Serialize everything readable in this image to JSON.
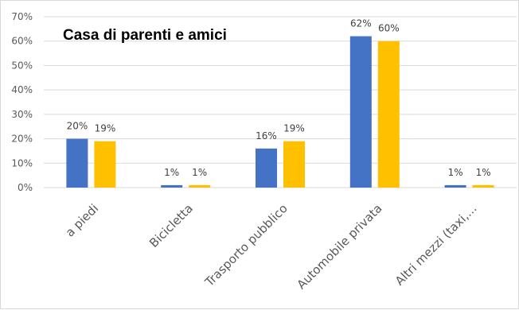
{
  "chart_data": {
    "type": "bar",
    "title": "Casa di parenti e amici",
    "categories": [
      "a piedi",
      "Bicicletta",
      "Trasporto pubblico",
      "Automobile privata",
      "Altri mezzi (taxi,..."
    ],
    "series": [
      {
        "color": "#4472C4",
        "values": [
          20,
          1,
          16,
          62,
          1
        ],
        "data_labels": [
          "20%",
          "1%",
          "16%",
          "62%",
          "1%"
        ]
      },
      {
        "color": "#FFC000",
        "values": [
          19,
          1,
          19,
          60,
          1
        ],
        "data_labels": [
          "19%",
          "1%",
          "19%",
          "60%",
          "1%"
        ]
      }
    ],
    "y_ticks": [
      "0%",
      "10%",
      "20%",
      "30%",
      "40%",
      "50%",
      "60%",
      "70%"
    ],
    "ylim": [
      0,
      70
    ],
    "grid": true,
    "legend": "none"
  }
}
